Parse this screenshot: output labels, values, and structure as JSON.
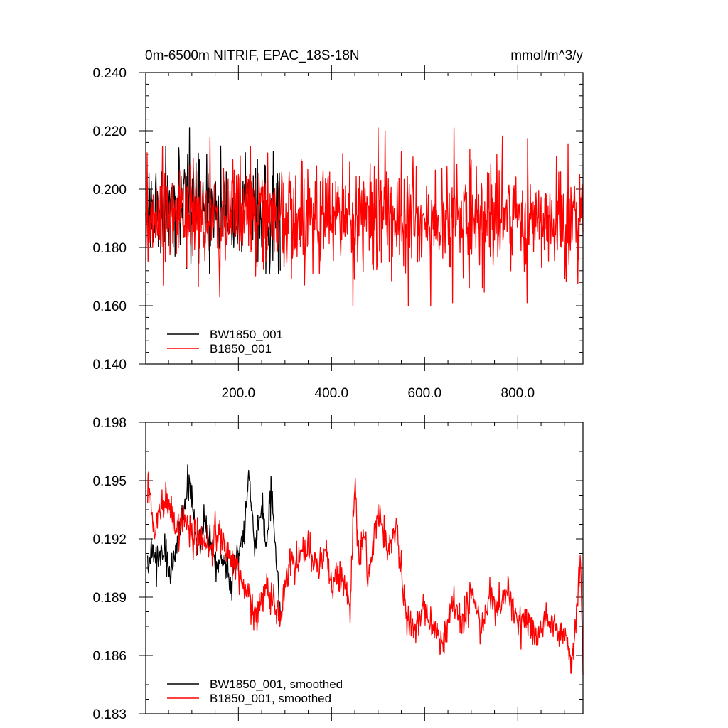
{
  "chart_data": [
    {
      "type": "line",
      "title_left": "0m-6500m NITRIF, EPAC_18S-18N",
      "title_right": "mmol/m^3/y",
      "xlim": [
        1,
        940
      ],
      "ylim": [
        0.14,
        0.24
      ],
      "grid": false,
      "legend_placement": "bottom-left",
      "xticks": [
        200,
        400,
        600,
        800
      ],
      "xtick_labels": [
        "200.0",
        "400.0",
        "600.0",
        "800.0"
      ],
      "yticks": [
        0.14,
        0.16,
        0.18,
        0.2,
        0.22,
        0.24
      ],
      "ytick_labels": [
        "0.140",
        "0.160",
        "0.180",
        "0.200",
        "0.220",
        "0.240"
      ],
      "series": [
        {
          "name": "BW1850_001",
          "color": "#000000",
          "x_range": [
            1,
            290
          ],
          "mean": 0.192,
          "std": 0.0085,
          "min": 0.171,
          "max": 0.221,
          "samples": [
            [
              1,
              0.191
            ],
            [
              10,
              0.2
            ],
            [
              20,
              0.185
            ],
            [
              40,
              0.198
            ],
            [
              60,
              0.18
            ],
            [
              80,
              0.195
            ],
            [
              95,
              0.221
            ],
            [
              120,
              0.19
            ],
            [
              150,
              0.2
            ],
            [
              180,
              0.186
            ],
            [
              200,
              0.196
            ],
            [
              225,
              0.203
            ],
            [
              250,
              0.18
            ],
            [
              275,
              0.213
            ],
            [
              290,
              0.172
            ]
          ]
        },
        {
          "name": "B1850_001",
          "color": "#ff0000",
          "x_range": [
            1,
            940
          ],
          "mean": 0.19,
          "std": 0.009,
          "min": 0.16,
          "max": 0.221,
          "samples": [
            [
              1,
              0.192
            ],
            [
              100,
              0.193
            ],
            [
              160,
              0.163
            ],
            [
              200,
              0.205
            ],
            [
              300,
              0.19
            ],
            [
              400,
              0.188
            ],
            [
              500,
              0.221
            ],
            [
              515,
              0.22
            ],
            [
              565,
              0.16
            ],
            [
              600,
              0.19
            ],
            [
              660,
              0.161
            ],
            [
              700,
              0.21
            ],
            [
              800,
              0.19
            ],
            [
              820,
              0.161
            ],
            [
              940,
              0.185
            ]
          ]
        }
      ]
    },
    {
      "type": "line",
      "xlim": [
        1,
        940
      ],
      "ylim": [
        0.183,
        0.198
      ],
      "grid": false,
      "legend_placement": "bottom-left",
      "yticks": [
        0.183,
        0.186,
        0.189,
        0.192,
        0.195,
        0.198
      ],
      "ytick_labels": [
        "0.183",
        "0.186",
        "0.189",
        "0.192",
        "0.195",
        "0.198"
      ],
      "series": [
        {
          "name": "BW1850_001, smoothed",
          "color": "#000000",
          "x": [
            5,
            15,
            25,
            40,
            55,
            70,
            85,
            95,
            110,
            125,
            140,
            155,
            170,
            185,
            200,
            215,
            222,
            235,
            250,
            260,
            270,
            280,
            290
          ],
          "y": [
            0.1905,
            0.1915,
            0.1905,
            0.1915,
            0.1905,
            0.192,
            0.1935,
            0.1952,
            0.1915,
            0.193,
            0.192,
            0.1905,
            0.191,
            0.1895,
            0.1915,
            0.1925,
            0.1955,
            0.1915,
            0.1935,
            0.1915,
            0.1945,
            0.1915,
            0.188
          ]
        },
        {
          "name": "B1850_001, smoothed",
          "color": "#ff0000",
          "x": [
            5,
            20,
            35,
            50,
            65,
            80,
            100,
            120,
            140,
            160,
            180,
            200,
            220,
            240,
            260,
            280,
            290,
            310,
            330,
            350,
            370,
            390,
            400,
            420,
            440,
            450,
            460,
            470,
            480,
            500,
            520,
            540,
            560,
            580,
            600,
            620,
            640,
            660,
            680,
            700,
            720,
            740,
            760,
            780,
            800,
            820,
            840,
            860,
            880,
            900,
            915,
            925,
            935,
            940
          ],
          "y": [
            0.1945,
            0.1925,
            0.1935,
            0.194,
            0.1925,
            0.193,
            0.1925,
            0.192,
            0.1915,
            0.1925,
            0.191,
            0.1905,
            0.189,
            0.188,
            0.1895,
            0.1885,
            0.188,
            0.1905,
            0.191,
            0.1915,
            0.1905,
            0.1915,
            0.1895,
            0.1905,
            0.1885,
            0.195,
            0.1905,
            0.1925,
            0.19,
            0.1935,
            0.1915,
            0.1925,
            0.188,
            0.1875,
            0.1885,
            0.1875,
            0.1865,
            0.189,
            0.1875,
            0.1895,
            0.1875,
            0.189,
            0.1885,
            0.1895,
            0.1875,
            0.188,
            0.187,
            0.188,
            0.1875,
            0.187,
            0.1855,
            0.1875,
            0.1915,
            0.185
          ]
        }
      ]
    }
  ]
}
